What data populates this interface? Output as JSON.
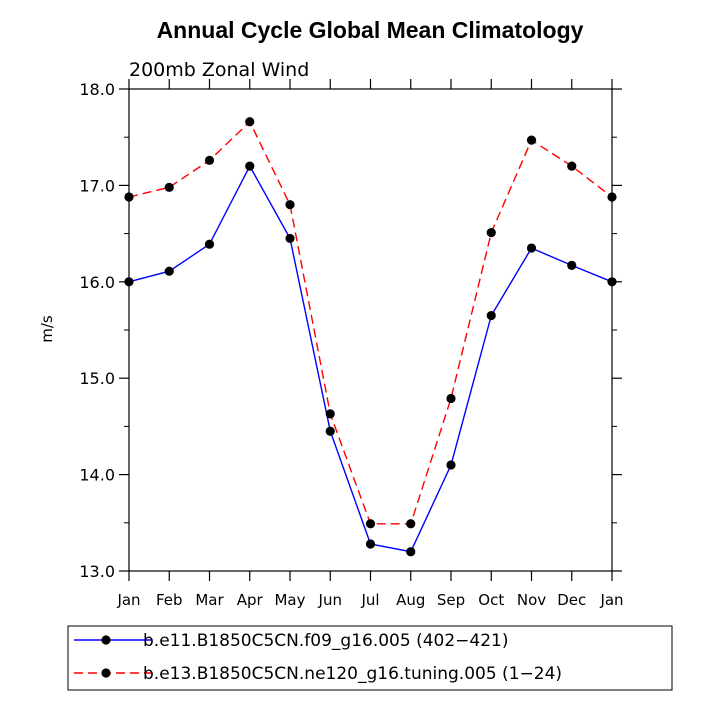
{
  "chart_data": {
    "type": "line",
    "title": "Annual Cycle Global Mean Climatology",
    "subtitle": "200mb Zonal Wind",
    "xlabel": "",
    "ylabel": "m/s",
    "ylim": [
      13.0,
      18.0
    ],
    "yticks": [
      "13.0",
      "14.0",
      "15.0",
      "16.0",
      "17.0",
      "18.0"
    ],
    "categories": [
      "Jan",
      "Feb",
      "Mar",
      "Apr",
      "May",
      "Jun",
      "Jul",
      "Aug",
      "Sep",
      "Oct",
      "Nov",
      "Dec",
      "Jan"
    ],
    "series": [
      {
        "name": "b.e11.B1850C5CN.f09_g16.005 (402−421)",
        "color": "#0000ff",
        "dash": "solid",
        "values": [
          16.0,
          16.11,
          16.39,
          17.2,
          16.45,
          14.45,
          13.28,
          13.2,
          14.1,
          15.65,
          16.35,
          16.17,
          16.0
        ]
      },
      {
        "name": "b.e13.B1850C5CN.ne120_g16.tuning.005 (1−24)",
        "color": "#ff0000",
        "dash": "dashed",
        "values": [
          16.88,
          16.98,
          17.26,
          17.66,
          16.8,
          14.63,
          13.49,
          13.49,
          14.79,
          16.51,
          17.47,
          17.2,
          16.88
        ]
      }
    ],
    "legend_position": "bottom"
  }
}
